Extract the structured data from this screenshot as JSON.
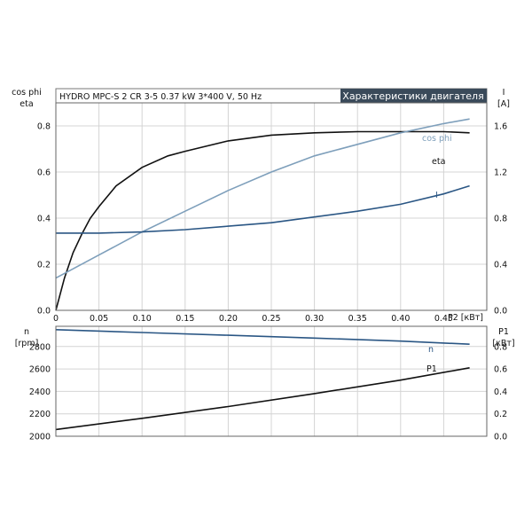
{
  "header": {
    "product": "HYDRO MPC-S 2 CR 3-5   0.37 kW   3*400 V, 50 Hz",
    "section_title": "Характеристики двигателя"
  },
  "colors": {
    "black": "#111111",
    "eta": "#111111",
    "cos_phi": "#7e9fbb",
    "current": "#2a5684",
    "speed": "#2a5684",
    "p1": "#111111",
    "title_bg": "#3a4a5a",
    "grid": "#d4d4d4"
  },
  "chart_data": [
    {
      "type": "line",
      "x_axis": {
        "label": "P2 [кВт]",
        "range": [
          0,
          0.5
        ],
        "ticks": [
          "0",
          "0.05",
          "0.10",
          "0.15",
          "0.20",
          "0.25",
          "0.30",
          "0.35",
          "0.40",
          "0.45"
        ]
      },
      "y_left": {
        "label_line1": "cos phi",
        "label_line2": "eta",
        "range": [
          0,
          0.9
        ],
        "ticks": [
          "0.0",
          "0.2",
          "0.4",
          "0.6",
          "0.8"
        ]
      },
      "y_right": {
        "label_line1": "I",
        "label_line2": "[A]",
        "range": [
          0,
          1.8
        ],
        "ticks": [
          "0.0",
          "0.4",
          "0.8",
          "1.2",
          "1.6"
        ]
      },
      "grid": true,
      "series": [
        {
          "name": "eta",
          "axis": "left",
          "points": [
            [
              0,
              0
            ],
            [
              0.01,
              0.14
            ],
            [
              0.02,
              0.25
            ],
            [
              0.03,
              0.33
            ],
            [
              0.04,
              0.4
            ],
            [
              0.05,
              0.45
            ],
            [
              0.07,
              0.54
            ],
            [
              0.1,
              0.62
            ],
            [
              0.13,
              0.67
            ],
            [
              0.15,
              0.69
            ],
            [
              0.2,
              0.735
            ],
            [
              0.25,
              0.76
            ],
            [
              0.3,
              0.77
            ],
            [
              0.35,
              0.775
            ],
            [
              0.4,
              0.775
            ],
            [
              0.45,
              0.775
            ],
            [
              0.48,
              0.77
            ]
          ]
        },
        {
          "name": "cos phi",
          "axis": "left",
          "points": [
            [
              0,
              0.14
            ],
            [
              0.05,
              0.24
            ],
            [
              0.1,
              0.34
            ],
            [
              0.15,
              0.43
            ],
            [
              0.2,
              0.52
            ],
            [
              0.25,
              0.6
            ],
            [
              0.3,
              0.67
            ],
            [
              0.35,
              0.72
            ],
            [
              0.4,
              0.77
            ],
            [
              0.45,
              0.81
            ],
            [
              0.48,
              0.83
            ]
          ]
        },
        {
          "name": "I",
          "axis": "right",
          "points": [
            [
              0,
              0.67
            ],
            [
              0.05,
              0.67
            ],
            [
              0.1,
              0.68
            ],
            [
              0.15,
              0.7
            ],
            [
              0.2,
              0.73
            ],
            [
              0.25,
              0.76
            ],
            [
              0.3,
              0.81
            ],
            [
              0.35,
              0.86
            ],
            [
              0.4,
              0.92
            ],
            [
              0.45,
              1.01
            ],
            [
              0.48,
              1.08
            ]
          ]
        }
      ]
    },
    {
      "type": "line",
      "x_axis": {
        "range": [
          0,
          0.5
        ]
      },
      "y_left": {
        "label_line1": "n",
        "label_line2": "[rpm]",
        "range": [
          2000,
          2980
        ],
        "ticks": [
          "2000",
          "2200",
          "2400",
          "2600",
          "2800"
        ]
      },
      "y_right": {
        "label_line1": "P1",
        "label_line2": "[кВт]",
        "range": [
          0,
          0.98
        ],
        "ticks": [
          "0.0",
          "0.2",
          "0.4",
          "0.6",
          "0.8"
        ]
      },
      "grid": true,
      "series": [
        {
          "name": "n",
          "axis": "left",
          "points": [
            [
              0,
              2950
            ],
            [
              0.1,
              2925
            ],
            [
              0.2,
              2900
            ],
            [
              0.3,
              2875
            ],
            [
              0.4,
              2848
            ],
            [
              0.48,
              2820
            ]
          ]
        },
        {
          "name": "P1",
          "axis": "right",
          "points": [
            [
              0,
              0.06
            ],
            [
              0.1,
              0.16
            ],
            [
              0.2,
              0.265
            ],
            [
              0.3,
              0.38
            ],
            [
              0.4,
              0.5
            ],
            [
              0.48,
              0.61
            ]
          ]
        }
      ]
    }
  ]
}
